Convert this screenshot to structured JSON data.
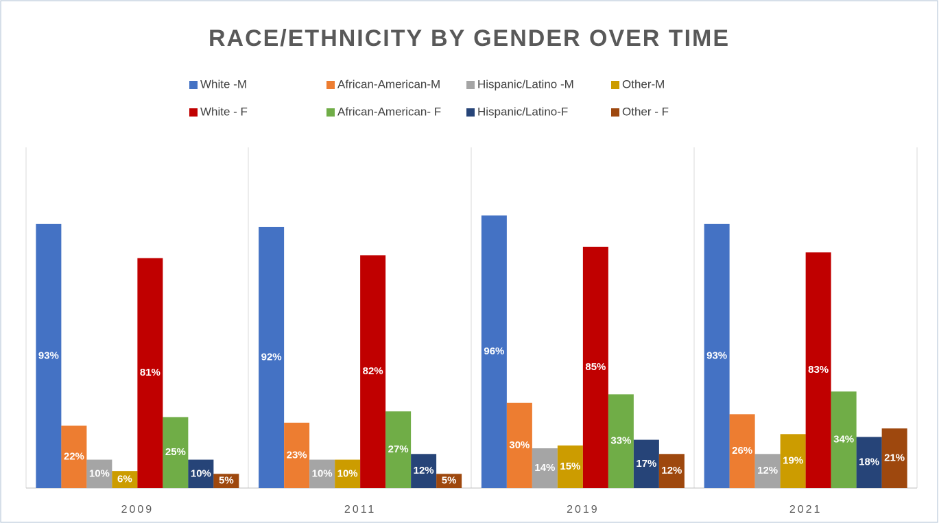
{
  "chart_data": {
    "type": "bar",
    "title": "RACE/ETHNICITY BY GENDER OVER TIME",
    "categories": [
      "2009",
      "2011",
      "2019",
      "2021"
    ],
    "ylim": [
      0,
      120
    ],
    "series": [
      {
        "name": "White -M",
        "color": "#4472c4",
        "values": [
          93,
          92,
          96,
          93
        ],
        "value_labels": [
          "93%",
          "92%",
          "96%",
          "93%"
        ]
      },
      {
        "name": "African-American-M",
        "color": "#ed7d31",
        "values": [
          22,
          23,
          30,
          26
        ],
        "value_labels": [
          "22%",
          "23%",
          "30%",
          "26%"
        ]
      },
      {
        "name": "Hispanic/Latino -M",
        "color": "#a5a5a5",
        "values": [
          10,
          10,
          14,
          12
        ],
        "value_labels": [
          "10%",
          "10%",
          "14%",
          "12%"
        ]
      },
      {
        "name": "Other-M",
        "color": "#cc9c00",
        "values": [
          6,
          10,
          15,
          19
        ],
        "value_labels": [
          "6%",
          "10%",
          "15%",
          "19%"
        ]
      },
      {
        "name": "White - F",
        "color": "#c00000",
        "values": [
          81,
          82,
          85,
          83
        ],
        "value_labels": [
          "81%",
          "82%",
          "85%",
          "83%"
        ]
      },
      {
        "name": "African-American- F",
        "color": "#70ad47",
        "values": [
          25,
          27,
          33,
          34
        ],
        "value_labels": [
          "25%",
          "27%",
          "33%",
          "34%"
        ]
      },
      {
        "name": "Hispanic/Latino-F",
        "color": "#264478",
        "values": [
          10,
          12,
          17,
          18
        ],
        "value_labels": [
          "10%",
          "12%",
          "17%",
          "18%"
        ]
      },
      {
        "name": "Other - F",
        "color": "#9e480e",
        "values": [
          5,
          5,
          12,
          21
        ],
        "value_labels": [
          "5%",
          "5%",
          "12%",
          "21%"
        ]
      }
    ]
  }
}
